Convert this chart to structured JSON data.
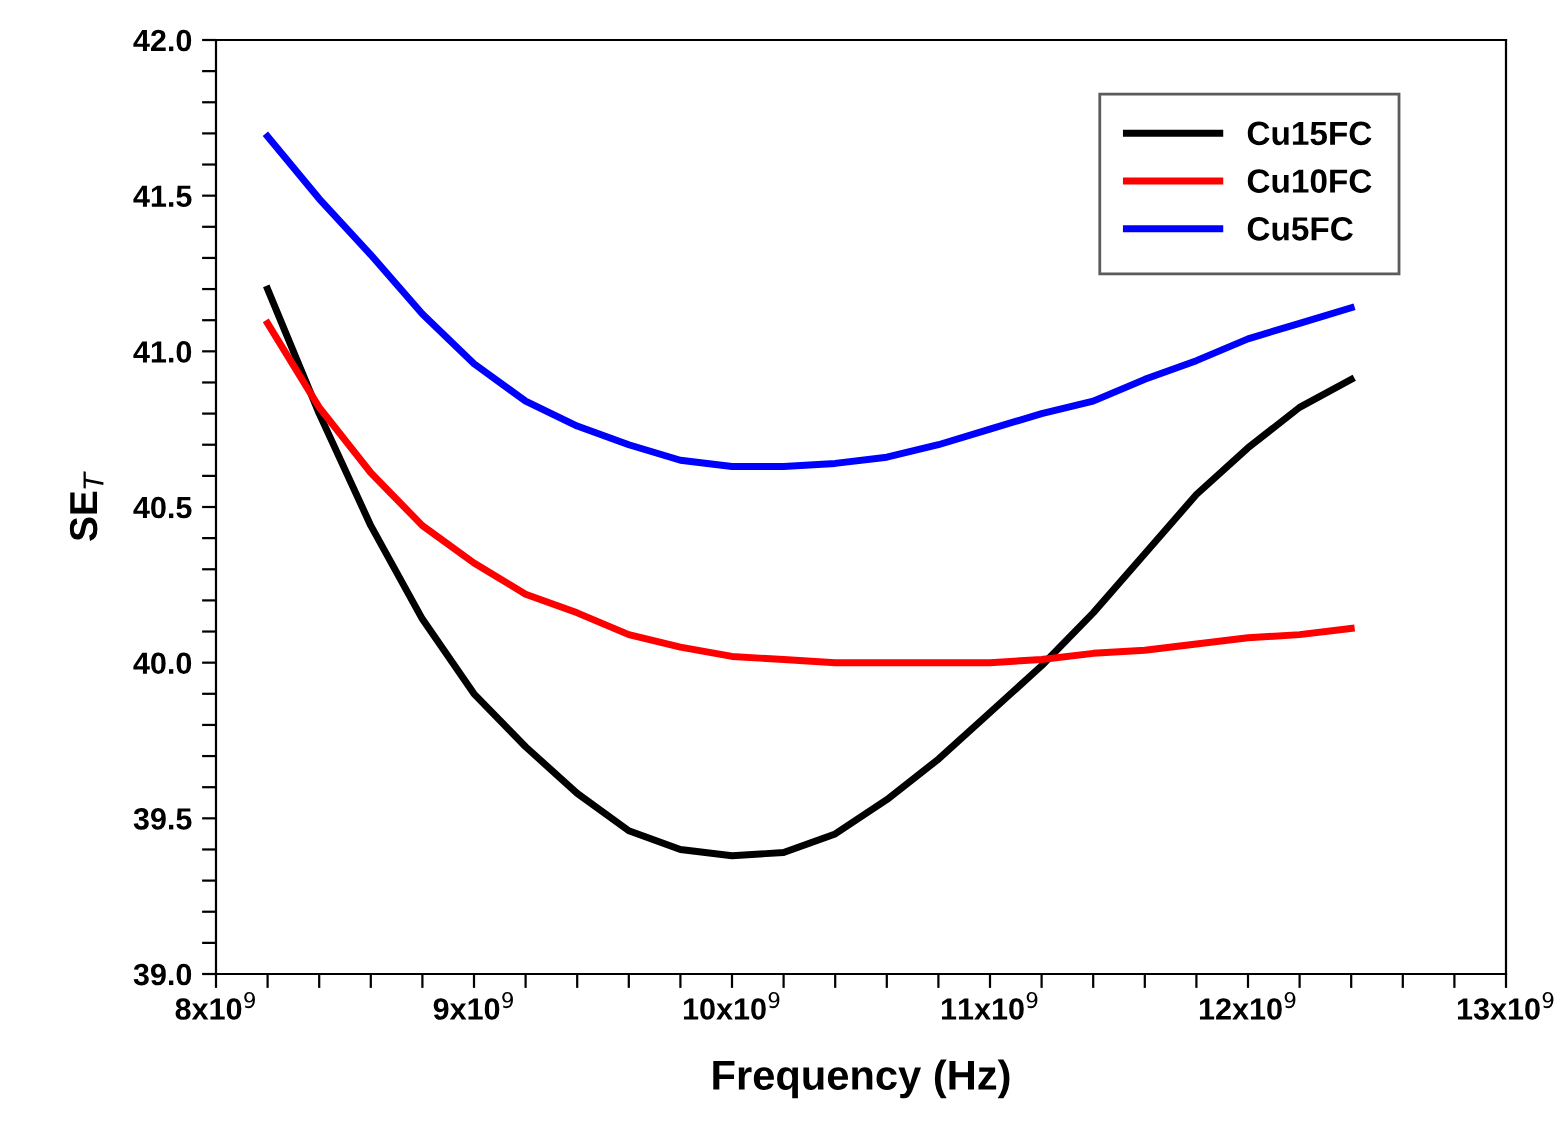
{
  "chart_data": {
    "type": "line",
    "xlabel": "Frequency (Hz)",
    "ylabel": "SE$_{T}$",
    "x": [
      8200000000.0,
      8400000000.0,
      8600000000.0,
      8800000000.0,
      9000000000.0,
      9200000000.0,
      9400000000.0,
      9600000000.0,
      9800000000.0,
      10000000000.0,
      10200000000.0,
      10400000000.0,
      10600000000.0,
      10800000000.0,
      11000000000.0,
      11200000000.0,
      11400000000.0,
      11600000000.0,
      11800000000.0,
      12000000000.0,
      12200000000.0,
      12400000000.0
    ],
    "series": [
      {
        "name": "Cu15FC",
        "color": "#000000",
        "values": [
          41.2,
          40.8,
          40.44,
          40.14,
          39.9,
          39.73,
          39.58,
          39.46,
          39.4,
          39.38,
          39.39,
          39.45,
          39.56,
          39.69,
          39.84,
          39.99,
          40.16,
          40.35,
          40.54,
          40.69,
          40.82,
          40.91
        ]
      },
      {
        "name": "Cu10FC",
        "color": "#ff0000",
        "values": [
          41.09,
          40.82,
          40.61,
          40.44,
          40.32,
          40.22,
          40.16,
          40.09,
          40.05,
          40.02,
          40.01,
          40.0,
          40.0,
          40.0,
          40.0,
          40.01,
          40.03,
          40.04,
          40.06,
          40.08,
          40.09,
          40.11
        ]
      },
      {
        "name": "Cu5FC",
        "color": "#0000ff",
        "values": [
          41.69,
          41.49,
          41.31,
          41.12,
          40.96,
          40.84,
          40.76,
          40.7,
          40.65,
          40.63,
          40.63,
          40.64,
          40.66,
          40.7,
          40.75,
          40.8,
          40.84,
          40.91,
          40.97,
          41.04,
          41.09,
          41.14
        ]
      }
    ],
    "xlim": [
      8000000000.0,
      13000000000.0
    ],
    "xticks": [
      {
        "value": 8000000000.0,
        "label": "8x10$^{9}$"
      },
      {
        "value": 8200000000.0,
        "label": null
      },
      {
        "value": 8400000000.0,
        "label": null
      },
      {
        "value": 8600000000.0,
        "label": null
      },
      {
        "value": 8800000000.0,
        "label": null
      },
      {
        "value": 9000000000.0,
        "label": "9x10$^{9}$"
      },
      {
        "value": 9200000000.0,
        "label": null
      },
      {
        "value": 9400000000.0,
        "label": null
      },
      {
        "value": 9600000000.0,
        "label": null
      },
      {
        "value": 9800000000.0,
        "label": null
      },
      {
        "value": 10000000000.0,
        "label": "10x10$^{9}$"
      },
      {
        "value": 10200000000.0,
        "label": null
      },
      {
        "value": 10400000000.0,
        "label": null
      },
      {
        "value": 10600000000.0,
        "label": null
      },
      {
        "value": 10800000000.0,
        "label": null
      },
      {
        "value": 11000000000.0,
        "label": "11x10$^{9}$"
      },
      {
        "value": 11200000000.0,
        "label": null
      },
      {
        "value": 11400000000.0,
        "label": null
      },
      {
        "value": 11600000000.0,
        "label": null
      },
      {
        "value": 11800000000.0,
        "label": null
      },
      {
        "value": 12000000000.0,
        "label": "12x10$^{9}$"
      },
      {
        "value": 12200000000.0,
        "label": null
      },
      {
        "value": 12400000000.0,
        "label": null
      },
      {
        "value": 12600000000.0,
        "label": null
      },
      {
        "value": 12800000000.0,
        "label": null
      },
      {
        "value": 13000000000.0,
        "label": "13x10$^{9}$"
      }
    ],
    "ylim": [
      39.0,
      42.0
    ],
    "yticks": [
      {
        "value": 39.0,
        "label": "39.0"
      },
      {
        "value": 39.1,
        "label": null
      },
      {
        "value": 39.2,
        "label": null
      },
      {
        "value": 39.3,
        "label": null
      },
      {
        "value": 39.4,
        "label": null
      },
      {
        "value": 39.5,
        "label": "39.5"
      },
      {
        "value": 39.6,
        "label": null
      },
      {
        "value": 39.7,
        "label": null
      },
      {
        "value": 39.8,
        "label": null
      },
      {
        "value": 39.9,
        "label": null
      },
      {
        "value": 40.0,
        "label": "40.0"
      },
      {
        "value": 40.1,
        "label": null
      },
      {
        "value": 40.2,
        "label": null
      },
      {
        "value": 40.3,
        "label": null
      },
      {
        "value": 40.4,
        "label": null
      },
      {
        "value": 40.5,
        "label": "40.5"
      },
      {
        "value": 40.6,
        "label": null
      },
      {
        "value": 40.7,
        "label": null
      },
      {
        "value": 40.8,
        "label": null
      },
      {
        "value": 40.9,
        "label": null
      },
      {
        "value": 41.0,
        "label": "41.0"
      },
      {
        "value": 41.1,
        "label": null
      },
      {
        "value": 41.2,
        "label": null
      },
      {
        "value": 41.3,
        "label": null
      },
      {
        "value": 41.4,
        "label": null
      },
      {
        "value": 41.5,
        "label": "41.5"
      },
      {
        "value": 41.6,
        "label": null
      },
      {
        "value": 41.7,
        "label": null
      },
      {
        "value": 41.8,
        "label": null
      },
      {
        "value": 41.9,
        "label": null
      },
      {
        "value": 42.0,
        "label": "42.0"
      }
    ],
    "legend": "top right",
    "grid": false
  }
}
